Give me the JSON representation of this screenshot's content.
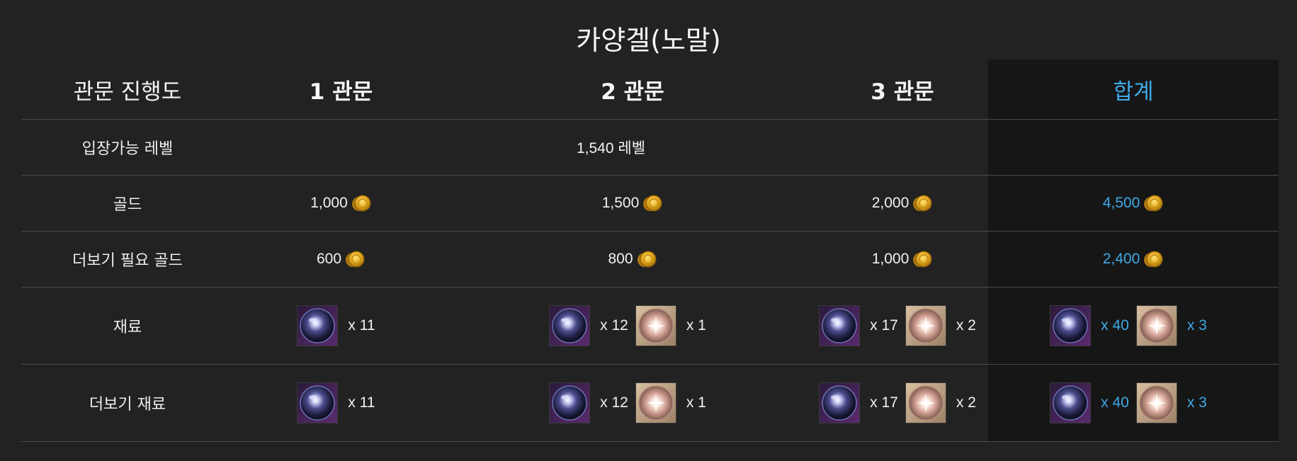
{
  "title": "카양겔(노말)",
  "colors": {
    "background": "#222222",
    "summary_background": "#161616",
    "accent": "#3fa9e6",
    "divider": "#4a4a4a"
  },
  "header": {
    "label": "관문 진행도",
    "stage1": "1 관문",
    "stage2": "2 관문",
    "stage3": "3 관문",
    "total": "합계"
  },
  "level_row": {
    "label": "입장가능 레벨",
    "value": "1,540 레벨"
  },
  "gold_row": {
    "label": "골드",
    "stage1": "1,000",
    "stage2": "1,500",
    "stage3": "2,000",
    "total": "4,500",
    "icon": "gold-coin-icon"
  },
  "more_gold_row": {
    "label": "더보기 필요 골드",
    "stage1": "600",
    "stage2": "800",
    "stage3": "1,000",
    "total": "2,400",
    "icon": "gold-coin-icon"
  },
  "material_row": {
    "label": "재료",
    "icons": [
      "dark-orb-material-icon",
      "radiant-gem-material-icon"
    ],
    "stage1": {
      "orb": "x 11"
    },
    "stage2": {
      "orb": "x 12",
      "gem": "x 1"
    },
    "stage3": {
      "orb": "x 17",
      "gem": "x 2"
    },
    "total": {
      "orb": "x 40",
      "gem": "x 3"
    }
  },
  "more_material_row": {
    "label": "더보기 재료",
    "icons": [
      "dark-orb-material-icon",
      "radiant-gem-material-icon"
    ],
    "stage1": {
      "orb": "x 11"
    },
    "stage2": {
      "orb": "x 12",
      "gem": "x 1"
    },
    "stage3": {
      "orb": "x 17",
      "gem": "x 2"
    },
    "total": {
      "orb": "x 40",
      "gem": "x 3"
    }
  }
}
